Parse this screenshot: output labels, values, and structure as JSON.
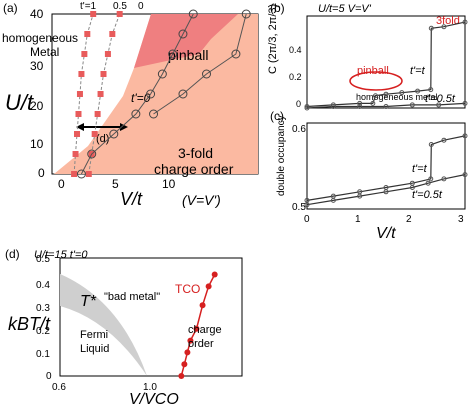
{
  "chart_data": [
    {
      "panel": "(a)",
      "type": "scatter",
      "xlabel": "V/t",
      "xlabel_note": "(V=V')",
      "ylabel": "U/t",
      "xlim": [
        0,
        14
      ],
      "ylim": [
        0,
        40
      ],
      "xticks": [
        0,
        5,
        10
      ],
      "yticks": [
        0,
        10,
        20,
        30,
        40
      ],
      "top_labels": [
        "t'=1",
        "0.5",
        "0"
      ],
      "regions": [
        {
          "name": "homogeneous Metal",
          "label": "homogeneous\nMetal",
          "color": "#ffffff"
        },
        {
          "name": "pinball",
          "label": "pinball",
          "color": "#ef7f80"
        },
        {
          "name": "3-fold charge order",
          "label": "3-fold\ncharge order",
          "color": "#fbb9a1"
        }
      ],
      "annotations": [
        "t'=0",
        "(d)"
      ],
      "series": [
        {
          "values_x": [
            1.5,
            1.6,
            1.7,
            1.8,
            1.9,
            2.0,
            2.2,
            2.4,
            2.8
          ],
          "values_y": [
            0,
            5,
            10,
            15,
            20,
            25,
            30,
            35,
            40
          ],
          "marker": "square",
          "color": "#e85b5b"
        },
        {
          "values_x": [
            2.5,
            2.7,
            2.9,
            3.1,
            3.3,
            3.5,
            3.8,
            4.1,
            4.6
          ],
          "values_y": [
            0,
            5,
            10,
            15,
            20,
            25,
            30,
            35,
            40
          ],
          "marker": "square",
          "color": "#e85b5b"
        },
        {
          "values_x": [
            2.0,
            2.7,
            4.2,
            5.7,
            6.7,
            7.5,
            8.2,
            8.9,
            9.6
          ],
          "values_y": [
            0,
            5,
            10,
            15,
            20,
            25,
            30,
            35,
            40
          ],
          "marker": "open-circle",
          "color": "#444444"
        },
        {
          "values_x": [
            6.9,
            8.9,
            10.5,
            12.5,
            13.2
          ],
          "values_y": [
            15,
            20,
            25,
            30,
            40
          ],
          "marker": "open-circle",
          "color": "#444444"
        }
      ]
    },
    {
      "panel": "(b)",
      "type": "line",
      "header": "U/t=5   V=V'",
      "ylabel": "C (2π/3, 2π/3)",
      "xlim": [
        0,
        3
      ],
      "ylim": [
        0,
        0.6
      ],
      "xticks": [
        0,
        1,
        2,
        3
      ],
      "yticks": [
        0,
        0.2,
        0.4
      ],
      "labels": [
        "3fold",
        "pinball",
        "homogeneous metal",
        "t'=t",
        "t'=0.5t"
      ],
      "series": [
        {
          "name": "t'=t",
          "x": [
            0,
            0.5,
            1.0,
            1.25,
            1.3,
            1.5,
            1.8,
            2.1,
            2.35,
            2.36,
            2.6,
            3.0
          ],
          "y": [
            0.01,
            0.02,
            0.03,
            0.03,
            0.08,
            0.09,
            0.1,
            0.11,
            0.12,
            0.52,
            0.53,
            0.56
          ]
        },
        {
          "name": "t'=0.5t",
          "x": [
            0,
            0.5,
            1.0,
            1.5,
            2.0,
            2.5,
            3.0
          ],
          "y": [
            0.0,
            0.01,
            0.01,
            0.01,
            0.02,
            0.02,
            0.03
          ]
        }
      ]
    },
    {
      "panel": "(c)",
      "type": "line",
      "ylabel": "double occupancy",
      "xlabel": "V/t",
      "xlim": [
        0,
        3
      ],
      "ylim": [
        0.5,
        0.6
      ],
      "xticks": [
        0,
        1,
        2,
        3
      ],
      "yticks": [
        0.5,
        0.6
      ],
      "labels": [
        "t'=t",
        "t'=0.5t"
      ],
      "series": [
        {
          "name": "t'=t",
          "x": [
            0,
            0.5,
            1.0,
            1.5,
            2.0,
            2.35,
            2.36,
            2.6,
            3.0
          ],
          "y": [
            0.51,
            0.515,
            0.52,
            0.525,
            0.53,
            0.535,
            0.575,
            0.58,
            0.585
          ]
        },
        {
          "name": "t'=0.5t",
          "x": [
            0,
            0.5,
            1.0,
            1.5,
            2.0,
            2.3,
            2.6,
            3.0
          ],
          "y": [
            0.505,
            0.51,
            0.515,
            0.52,
            0.525,
            0.53,
            0.535,
            0.54
          ]
        }
      ]
    },
    {
      "panel": "(d)",
      "type": "line",
      "header": "U/t=15   t'=0",
      "ylabel": "kBT/t",
      "xlabel": "V/VCO",
      "xlim": [
        0.6,
        1.2
      ],
      "ylim": [
        0,
        0.5
      ],
      "xticks": [
        0.6,
        1.0
      ],
      "yticks": [
        0,
        0.1,
        0.2,
        0.3,
        0.4,
        0.5
      ],
      "region_labels": [
        "T*",
        "\"bad metal\"",
        "Fermi Liquid",
        "charge order",
        "TCO"
      ],
      "series": [
        {
          "name": "TCO",
          "x": [
            1.0,
            1.01,
            1.02,
            1.03,
            1.05,
            1.07,
            1.09,
            1.11
          ],
          "y": [
            0.0,
            0.05,
            0.1,
            0.15,
            0.2,
            0.3,
            0.38,
            0.43
          ],
          "color": "#d62020"
        }
      ]
    }
  ]
}
